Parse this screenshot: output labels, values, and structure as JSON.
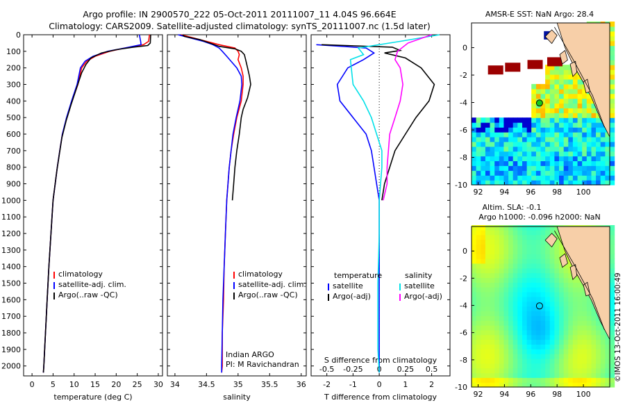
{
  "title": {
    "line1": "Argo profile: IN 2900570_222 05-Oct-2011 20111007_11 4.04S 96.664E",
    "line2": "Climatology: CARS2009. Satellite-adjusted climatology: synTS_20111007.nc (1.5d later)"
  },
  "watermark": "©IMOS 13-Oct-2011 16:00:49",
  "colors": {
    "climatology": "#ff0000",
    "satellite": "#0000ff",
    "argo": "#000000",
    "sat_salinity": "#00e0e8",
    "argo_salinity": "#ff00ff",
    "land": "#f7cfa8",
    "ocean_bg": "#ffffff"
  },
  "chart_data": [
    {
      "id": "temperature",
      "type": "line",
      "xlabel": "temperature (deg C)",
      "ylabel": "",
      "xlim": [
        -2,
        31
      ],
      "ylim": [
        2060,
        0
      ],
      "xticks": [
        0,
        5,
        10,
        15,
        20,
        25,
        30
      ],
      "yticks": [
        0,
        100,
        200,
        300,
        400,
        500,
        600,
        700,
        800,
        900,
        1000,
        1100,
        1200,
        1300,
        1400,
        1500,
        1600,
        1700,
        1800,
        1900,
        2000
      ],
      "legend": [
        "climatology",
        "satellite-adj. clim.",
        "Argo(..raw -QC)"
      ],
      "series": [
        {
          "name": "climatology",
          "color": "#ff0000",
          "points": [
            [
              27.9,
              0
            ],
            [
              27.7,
              40
            ],
            [
              26.5,
              60
            ],
            [
              22,
              80
            ],
            [
              18.5,
              100
            ],
            [
              15,
              130
            ],
            [
              13,
              160
            ],
            [
              11.8,
              200
            ],
            [
              10.9,
              300
            ],
            [
              9.5,
              400
            ],
            [
              8.3,
              500
            ],
            [
              7.2,
              600
            ],
            [
              6.6,
              700
            ],
            [
              6,
              800
            ],
            [
              5.5,
              900
            ],
            [
              5,
              1000
            ],
            [
              4.5,
              1200
            ],
            [
              4,
              1400
            ],
            [
              3.6,
              1600
            ],
            [
              3.2,
              1800
            ],
            [
              2.8,
              2000
            ],
            [
              2.7,
              2040
            ]
          ]
        },
        {
          "name": "satellite-adj. clim.",
          "color": "#0000ff",
          "points": [
            [
              25.5,
              0
            ],
            [
              25.8,
              40
            ],
            [
              25.9,
              60
            ],
            [
              22,
              80
            ],
            [
              18,
              100
            ],
            [
              14.5,
              130
            ],
            [
              12.6,
              160
            ],
            [
              11.5,
              200
            ],
            [
              10.7,
              300
            ],
            [
              9.4,
              400
            ],
            [
              8.2,
              500
            ],
            [
              7.2,
              600
            ],
            [
              6.6,
              700
            ],
            [
              6,
              800
            ],
            [
              5.5,
              900
            ],
            [
              5,
              1000
            ],
            [
              4.5,
              1200
            ],
            [
              4,
              1400
            ],
            [
              3.6,
              1600
            ],
            [
              3.2,
              1800
            ],
            [
              2.8,
              2000
            ],
            [
              2.7,
              2040
            ]
          ]
        },
        {
          "name": "Argo(..raw -QC)",
          "color": "#000000",
          "points": [
            [
              28.2,
              0
            ],
            [
              28.1,
              50
            ],
            [
              27.5,
              65
            ],
            [
              24,
              75
            ],
            [
              20,
              90
            ],
            [
              16.5,
              110
            ],
            [
              14,
              140
            ],
            [
              12.8,
              180
            ],
            [
              11.8,
              230
            ],
            [
              10.6,
              320
            ],
            [
              9.3,
              420
            ],
            [
              8.1,
              520
            ],
            [
              7.1,
              620
            ],
            [
              6.5,
              720
            ],
            [
              5.9,
              820
            ],
            [
              5.4,
              920
            ],
            [
              5,
              1000
            ],
            [
              4.5,
              1200
            ],
            [
              4,
              1400
            ],
            [
              3.6,
              1600
            ],
            [
              3.2,
              1800
            ],
            [
              2.8,
              2000
            ],
            [
              2.7,
              2040
            ]
          ]
        }
      ]
    },
    {
      "id": "salinity",
      "type": "line",
      "xlabel": "salinity",
      "ylabel": "",
      "xlim": [
        33.88,
        36.08
      ],
      "ylim": [
        2060,
        0
      ],
      "xticks": [
        34,
        34.5,
        35,
        35.5,
        36
      ],
      "legend": [
        "climatology",
        "satellite-adj. clim.",
        "Argo(..raw -QC)"
      ],
      "annotation": [
        "Indian ARGO",
        "PI: M Ravichandran"
      ],
      "series": [
        {
          "name": "climatology",
          "color": "#ff0000",
          "points": [
            [
              34.1,
              0
            ],
            [
              34.3,
              20
            ],
            [
              34.5,
              40
            ],
            [
              34.7,
              60
            ],
            [
              34.95,
              80
            ],
            [
              35.0,
              100
            ],
            [
              35.02,
              120
            ],
            [
              35.0,
              150
            ],
            [
              35.05,
              200
            ],
            [
              35.08,
              250
            ],
            [
              35.08,
              300
            ],
            [
              35.05,
              400
            ],
            [
              34.98,
              500
            ],
            [
              34.93,
              600
            ],
            [
              34.89,
              700
            ],
            [
              34.86,
              800
            ],
            [
              34.84,
              900
            ],
            [
              34.82,
              1000
            ],
            [
              34.8,
              1200
            ],
            [
              34.78,
              1400
            ],
            [
              34.77,
              1600
            ],
            [
              34.75,
              1800
            ],
            [
              34.75,
              2000
            ],
            [
              34.74,
              2040
            ]
          ]
        },
        {
          "name": "satellite-adj. clim.",
          "color": "#0000ff",
          "points": [
            [
              34.05,
              0
            ],
            [
              34.2,
              15
            ],
            [
              34.45,
              40
            ],
            [
              34.6,
              60
            ],
            [
              34.7,
              80
            ],
            [
              34.75,
              100
            ],
            [
              34.82,
              130
            ],
            [
              34.98,
              200
            ],
            [
              35.05,
              250
            ],
            [
              35.06,
              300
            ],
            [
              35.03,
              400
            ],
            [
              34.97,
              500
            ],
            [
              34.92,
              600
            ],
            [
              34.89,
              700
            ],
            [
              34.86,
              800
            ],
            [
              34.84,
              900
            ],
            [
              34.82,
              1000
            ],
            [
              34.8,
              1200
            ],
            [
              34.78,
              1400
            ],
            [
              34.76,
              1600
            ],
            [
              34.75,
              1800
            ],
            [
              34.74,
              2000
            ],
            [
              34.74,
              2040
            ]
          ]
        },
        {
          "name": "Argo(..raw -QC)",
          "color": "#000000",
          "points": [
            [
              34.12,
              0
            ],
            [
              34.15,
              10
            ],
            [
              34.4,
              30
            ],
            [
              34.55,
              50
            ],
            [
              34.7,
              70
            ],
            [
              34.95,
              85
            ],
            [
              35.05,
              100
            ],
            [
              35.1,
              120
            ],
            [
              35.12,
              150
            ],
            [
              35.15,
              200
            ],
            [
              35.18,
              250
            ],
            [
              35.2,
              300
            ],
            [
              35.15,
              380
            ],
            [
              35.08,
              450
            ],
            [
              35.05,
              500
            ],
            [
              35.02,
              600
            ],
            [
              34.98,
              700
            ],
            [
              34.95,
              800
            ],
            [
              34.93,
              900
            ],
            [
              34.91,
              1000
            ]
          ]
        }
      ]
    },
    {
      "id": "difference",
      "type": "line",
      "xlabel": "T difference from climatology",
      "xlabel2": "S difference from climatology",
      "xlim": [
        -2.6,
        2.7
      ],
      "ylim": [
        2060,
        0
      ],
      "xticks": [
        -2,
        -1,
        0,
        1,
        2
      ],
      "xticks2": [
        -0.5,
        -0.25,
        0,
        0.25,
        0.5
      ],
      "legend": {
        "temperature_header": "temperature",
        "salinity_header": "salinity",
        "satellite": "satellite",
        "argo": "Argo(-adj)"
      },
      "series": [
        {
          "name": "T satellite",
          "color": "#0000ff",
          "points": [
            [
              -2.4,
              60
            ],
            [
              -0.5,
              80
            ],
            [
              -0.2,
              110
            ],
            [
              -0.6,
              150
            ],
            [
              -1.2,
              200
            ],
            [
              -1.6,
              300
            ],
            [
              -1.5,
              400
            ],
            [
              -1.0,
              500
            ],
            [
              -0.5,
              600
            ],
            [
              -0.3,
              700
            ],
            [
              -0.2,
              800
            ],
            [
              -0.1,
              900
            ],
            [
              0,
              1000
            ],
            [
              0,
              2040
            ]
          ]
        },
        {
          "name": "T Argo(-adj)",
          "color": "#000000",
          "points": [
            [
              -2.2,
              60
            ],
            [
              0.5,
              75
            ],
            [
              0.8,
              95
            ],
            [
              0.2,
              110
            ],
            [
              1.0,
              140
            ],
            [
              1.6,
              200
            ],
            [
              2.1,
              300
            ],
            [
              1.9,
              400
            ],
            [
              1.4,
              500
            ],
            [
              1.0,
              600
            ],
            [
              0.6,
              700
            ],
            [
              0.4,
              800
            ],
            [
              0.2,
              900
            ],
            [
              0.1,
              1000
            ]
          ]
        },
        {
          "name": "S satellite",
          "color": "#00e0e8",
          "points": [
            [
              2.3,
              0
            ],
            [
              0.8,
              40
            ],
            [
              -0.8,
              80
            ],
            [
              -0.6,
              120
            ],
            [
              -1.1,
              150
            ],
            [
              -1.0,
              300
            ],
            [
              -0.6,
              400
            ],
            [
              -0.3,
              500
            ],
            [
              -0.1,
              600
            ],
            [
              0.1,
              700
            ],
            [
              0.1,
              800
            ],
            [
              0.05,
              900
            ],
            [
              0,
              1000
            ],
            [
              0,
              1200
            ],
            [
              -0.05,
              1500
            ],
            [
              -0.05,
              1900
            ],
            [
              0,
              2040
            ]
          ]
        },
        {
          "name": "S Argo(-adj)",
          "color": "#ff00ff",
          "points": [
            [
              2.0,
              0
            ],
            [
              1.1,
              50
            ],
            [
              0.7,
              100
            ],
            [
              0.6,
              150
            ],
            [
              0.8,
              200
            ],
            [
              0.9,
              300
            ],
            [
              0.8,
              400
            ],
            [
              0.6,
              500
            ],
            [
              0.4,
              600
            ],
            [
              0.3,
              800
            ],
            [
              0.3,
              900
            ],
            [
              0.15,
              1000
            ]
          ]
        }
      ]
    },
    {
      "id": "sst_map",
      "type": "heatmap",
      "title": "AMSR-E SST: NaN Argo: 28.4",
      "xlim": [
        91.5,
        102
      ],
      "ylim": [
        -10,
        1.8
      ],
      "xticks": [
        92,
        94,
        96,
        98,
        100
      ],
      "yticks": [
        0,
        -2,
        -4,
        -6,
        -8,
        -10
      ],
      "argo_position": [
        96.664,
        -4.04
      ]
    },
    {
      "id": "sla_map",
      "type": "heatmap",
      "title": "Altim. SLA: -0.1",
      "subtitle": "Argo h1000: -0.096 h2000: NaN",
      "xlim": [
        91.5,
        102
      ],
      "ylim": [
        -10,
        1.8
      ],
      "xticks": [
        92,
        94,
        96,
        98,
        100
      ],
      "yticks": [
        0,
        -2,
        -4,
        -6,
        -8,
        -10
      ],
      "argo_position": [
        96.664,
        -4.04
      ]
    }
  ]
}
